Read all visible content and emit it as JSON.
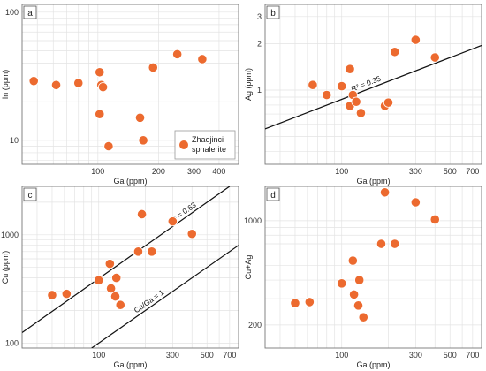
{
  "chart_data": [
    {
      "type": "scatter",
      "panel_label": "a",
      "xlabel": "Ga (ppm)",
      "ylabel": "In (ppm)",
      "x_scale": "log",
      "y_scale": "log",
      "xlim": [
        42,
        500
      ],
      "ylim": [
        6.5,
        115
      ],
      "x_ticks": [
        100,
        200,
        300,
        400
      ],
      "x_tick_labels": [
        "100",
        "200",
        "300",
        "400"
      ],
      "y_ticks": [
        10,
        100
      ],
      "y_tick_labels": [
        "10",
        "100"
      ],
      "grid": true,
      "marker_color": "#ec6a2f",
      "legend": {
        "placement": "bottom-right",
        "label_line1": "Zhaojinci",
        "label_line2": "sphalerite"
      },
      "series": [
        {
          "x": [
            48,
            62,
            80,
            102,
            104,
            106,
            102,
            113,
            162,
            168,
            188,
            248,
            330
          ],
          "y": [
            29,
            27,
            28,
            34,
            27,
            26,
            16,
            9,
            15,
            10,
            37,
            47,
            43
          ]
        }
      ]
    },
    {
      "type": "scatter",
      "panel_label": "b",
      "xlabel": "Ga (ppm)",
      "ylabel": "Ag (ppm)",
      "x_scale": "log",
      "y_scale": "log",
      "xlim": [
        32,
        800
      ],
      "ylim": [
        0.33,
        3.6
      ],
      "x_ticks": [
        100,
        300,
        500,
        700
      ],
      "x_tick_labels": [
        "100",
        "300",
        "500",
        "700"
      ],
      "y_ticks": [
        1,
        2,
        3
      ],
      "y_tick_labels": [
        "1",
        "2",
        "3"
      ],
      "grid": true,
      "marker_color": "#ec6a2f",
      "fit_line": {
        "label": "R² = 0.35",
        "x": [
          32,
          800
        ],
        "y": [
          0.56,
          1.95
        ]
      },
      "series": [
        {
          "x": [
            65,
            80,
            100,
            113,
            118,
            113,
            124,
            133,
            190,
            200,
            220,
            300,
            400
          ],
          "y": [
            1.08,
            0.93,
            1.06,
            1.37,
            0.93,
            0.79,
            0.84,
            0.71,
            0.79,
            0.83,
            1.77,
            2.12,
            1.63
          ]
        }
      ]
    },
    {
      "type": "scatter",
      "panel_label": "c",
      "xlabel": "Ga (ppm)",
      "ylabel": "Cu (ppm)",
      "x_scale": "log",
      "y_scale": "log",
      "xlim": [
        32,
        800
      ],
      "ylim": [
        90,
        2800
      ],
      "x_ticks": [
        100,
        300,
        500,
        700
      ],
      "x_tick_labels": [
        "100",
        "300",
        "500",
        "700"
      ],
      "y_ticks": [
        100,
        1000
      ],
      "y_tick_labels": [
        "100",
        "1000"
      ],
      "grid": true,
      "marker_color": "#ec6a2f",
      "fit_line": {
        "label": "R² = 0.63",
        "x": [
          32,
          700
        ],
        "y": [
          125,
          2800
        ]
      },
      "ratio_line": {
        "label": "Cu/Ga = 1",
        "x": [
          90,
          800
        ],
        "y": [
          90,
          800
        ]
      },
      "series": [
        {
          "x": [
            50,
            62,
            100,
            118,
            120,
            128,
            130,
            138,
            180,
            190,
            220,
            300,
            400
          ],
          "y": [
            278,
            285,
            380,
            540,
            320,
            270,
            400,
            225,
            700,
            1550,
            700,
            1330,
            1020
          ]
        }
      ]
    },
    {
      "type": "scatter",
      "panel_label": "d",
      "xlabel": "Ga (ppm)",
      "ylabel": "Cu+Ag",
      "x_scale": "log",
      "y_scale": "log",
      "xlim": [
        32,
        800
      ],
      "ylim": [
        140,
        1700
      ],
      "x_ticks": [
        100,
        300,
        500,
        700
      ],
      "x_tick_labels": [
        "100",
        "300",
        "500",
        "700"
      ],
      "y_ticks": [
        200,
        1000
      ],
      "y_tick_labels": [
        "200",
        "1000"
      ],
      "grid": true,
      "marker_color": "#ec6a2f",
      "series": [
        {
          "x": [
            50,
            62,
            100,
            118,
            120,
            128,
            130,
            138,
            180,
            190,
            220,
            300,
            400
          ],
          "y": [
            280,
            285,
            380,
            540,
            320,
            270,
            400,
            225,
            700,
            1550,
            700,
            1330,
            1020
          ]
        }
      ]
    }
  ]
}
